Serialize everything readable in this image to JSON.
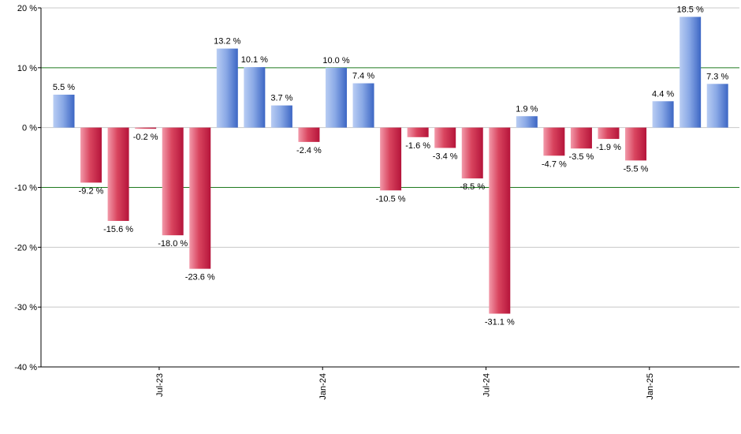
{
  "chart_data": {
    "type": "bar",
    "title": "",
    "xlabel": "",
    "ylabel": "",
    "ylim": [
      -40,
      20
    ],
    "y_ticks": [
      20,
      10,
      0,
      -10,
      -20,
      -30,
      -40
    ],
    "y_tick_labels": [
      "20 %",
      "10 %",
      "0 %",
      "-10 %",
      "-20 %",
      "-30 %",
      "-40 %"
    ],
    "x_tick_labels": [
      {
        "label": "Jul-23",
        "bar_index": 3.5
      },
      {
        "label": "Jan-24",
        "bar_index": 9.5
      },
      {
        "label": "Jul-24",
        "bar_index": 15.5
      },
      {
        "label": "Jan-25",
        "bar_index": 21.5
      }
    ],
    "values": [
      5.5,
      -9.2,
      -15.6,
      -0.2,
      -18.0,
      -23.6,
      13.2,
      10.1,
      3.7,
      -2.4,
      10.0,
      7.4,
      -10.5,
      -1.6,
      -3.4,
      -8.5,
      -31.1,
      1.9,
      -4.7,
      -3.5,
      -1.9,
      -5.5,
      4.4,
      18.5,
      7.3
    ],
    "value_labels": [
      "5.5 %",
      "-9.2 %",
      "-15.6 %",
      "-0.2 %",
      "-18.0 %",
      "-23.6 %",
      "13.2 %",
      "10.1 %",
      "3.7 %",
      "-2.4 %",
      "10.0 %",
      "7.4 %",
      "-10.5 %",
      "-1.6 %",
      "-3.4 %",
      "-8.5 %",
      "-31.1 %",
      "1.9 %",
      "-4.7 %",
      "-3.5 %",
      "-1.9 %",
      "-5.5 %",
      "4.4 %",
      "18.5 %",
      "7.3 %"
    ],
    "grid": true,
    "reference_lines": [
      10,
      -10
    ],
    "colors": {
      "positive_light": "#b9cdf3",
      "positive_dark": "#3c66c4",
      "negative_light": "#f29aaa",
      "negative_dark": "#b5143a",
      "gridline": "#c8c8c8",
      "reference_line": "#1f7a1f",
      "axis": "#000000"
    }
  }
}
